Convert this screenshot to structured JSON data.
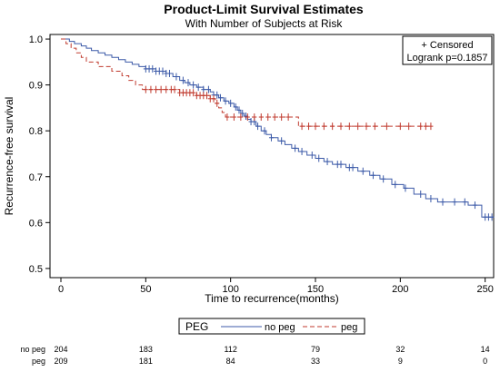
{
  "chart_data": {
    "type": "line",
    "title": "Product-Limit Survival Estimates",
    "subtitle": "With Number of Subjects at Risk",
    "xlabel": "Time to recurrence(months)",
    "ylabel": "Recurrence-free survival",
    "xlim": [
      0,
      255
    ],
    "ylim": [
      0.5,
      1.0
    ],
    "x_ticks": [
      0,
      50,
      100,
      150,
      200,
      250
    ],
    "y_ticks": [
      0.5,
      0.6,
      0.7,
      0.8,
      0.9,
      1.0
    ],
    "y_tick_labels": [
      "0.5",
      "0.6",
      "0.7",
      "0.8",
      "0.9",
      "1.0"
    ],
    "grid": false,
    "inset_box": {
      "censored_label": "+ Censored",
      "logrank_label": "Logrank p=0.1857"
    },
    "legend": {
      "title": "PEG",
      "placement": "bottom-center"
    },
    "series": [
      {
        "name": "no peg",
        "color": "#3c5aa8",
        "dash": "solid",
        "steps": [
          [
            0,
            1.0
          ],
          [
            5,
            0.995
          ],
          [
            8,
            0.99
          ],
          [
            12,
            0.985
          ],
          [
            15,
            0.98
          ],
          [
            18,
            0.975
          ],
          [
            22,
            0.97
          ],
          [
            26,
            0.965
          ],
          [
            30,
            0.96
          ],
          [
            34,
            0.955
          ],
          [
            38,
            0.95
          ],
          [
            42,
            0.945
          ],
          [
            46,
            0.94
          ],
          [
            50,
            0.935
          ],
          [
            56,
            0.93
          ],
          [
            62,
            0.925
          ],
          [
            66,
            0.918
          ],
          [
            70,
            0.91
          ],
          [
            73,
            0.905
          ],
          [
            76,
            0.9
          ],
          [
            80,
            0.895
          ],
          [
            84,
            0.89
          ],
          [
            88,
            0.885
          ],
          [
            90,
            0.878
          ],
          [
            93,
            0.872
          ],
          [
            96,
            0.865
          ],
          [
            99,
            0.86
          ],
          [
            102,
            0.852
          ],
          [
            104,
            0.845
          ],
          [
            106,
            0.838
          ],
          [
            108,
            0.832
          ],
          [
            110,
            0.825
          ],
          [
            112,
            0.82
          ],
          [
            115,
            0.81
          ],
          [
            118,
            0.8
          ],
          [
            121,
            0.792
          ],
          [
            124,
            0.785
          ],
          [
            128,
            0.778
          ],
          [
            132,
            0.77
          ],
          [
            136,
            0.762
          ],
          [
            140,
            0.755
          ],
          [
            145,
            0.747
          ],
          [
            150,
            0.74
          ],
          [
            155,
            0.733
          ],
          [
            160,
            0.727
          ],
          [
            168,
            0.72
          ],
          [
            175,
            0.712
          ],
          [
            182,
            0.703
          ],
          [
            188,
            0.695
          ],
          [
            195,
            0.683
          ],
          [
            202,
            0.675
          ],
          [
            208,
            0.662
          ],
          [
            215,
            0.652
          ],
          [
            222,
            0.645
          ],
          [
            240,
            0.638
          ],
          [
            248,
            0.612
          ],
          [
            255,
            0.612
          ]
        ],
        "censored": [
          50,
          52,
          54,
          56,
          58,
          60,
          62,
          64,
          68,
          72,
          75,
          78,
          81,
          84,
          87,
          90,
          92,
          94,
          97,
          100,
          103,
          105,
          107,
          109,
          112,
          114,
          116,
          120,
          124,
          130,
          138,
          142,
          148,
          152,
          157,
          163,
          165,
          170,
          172,
          178,
          184,
          190,
          197,
          203,
          212,
          218,
          225,
          232,
          238,
          244,
          250,
          252,
          254
        ]
      },
      {
        "name": "peg",
        "color": "#c03a2e",
        "dash": "dashed",
        "steps": [
          [
            0,
            1.0
          ],
          [
            3,
            0.99
          ],
          [
            6,
            0.98
          ],
          [
            9,
            0.97
          ],
          [
            12,
            0.96
          ],
          [
            15,
            0.95
          ],
          [
            22,
            0.94
          ],
          [
            30,
            0.93
          ],
          [
            36,
            0.92
          ],
          [
            40,
            0.91
          ],
          [
            44,
            0.9
          ],
          [
            48,
            0.89
          ],
          [
            70,
            0.883
          ],
          [
            80,
            0.877
          ],
          [
            88,
            0.87
          ],
          [
            91,
            0.86
          ],
          [
            93,
            0.85
          ],
          [
            95,
            0.84
          ],
          [
            97,
            0.83
          ],
          [
            140,
            0.81
          ],
          [
            218,
            0.81
          ]
        ],
        "censored": [
          50,
          53,
          56,
          59,
          62,
          65,
          67,
          70,
          72,
          74,
          76,
          78,
          80,
          82,
          84,
          86,
          88,
          90,
          92,
          98,
          102,
          106,
          110,
          114,
          118,
          122,
          126,
          130,
          134,
          142,
          146,
          150,
          155,
          160,
          165,
          170,
          175,
          180,
          185,
          192,
          200,
          205,
          212,
          215,
          218
        ]
      }
    ],
    "risk_table": {
      "times": [
        0,
        50,
        100,
        150,
        200,
        250
      ],
      "rows": [
        {
          "label": "no peg",
          "counts": [
            "204",
            "183",
            "112",
            "79",
            "32",
            "14"
          ]
        },
        {
          "label": "peg",
          "counts": [
            "209",
            "181",
            "84",
            "33",
            "9",
            "0"
          ]
        }
      ]
    }
  }
}
